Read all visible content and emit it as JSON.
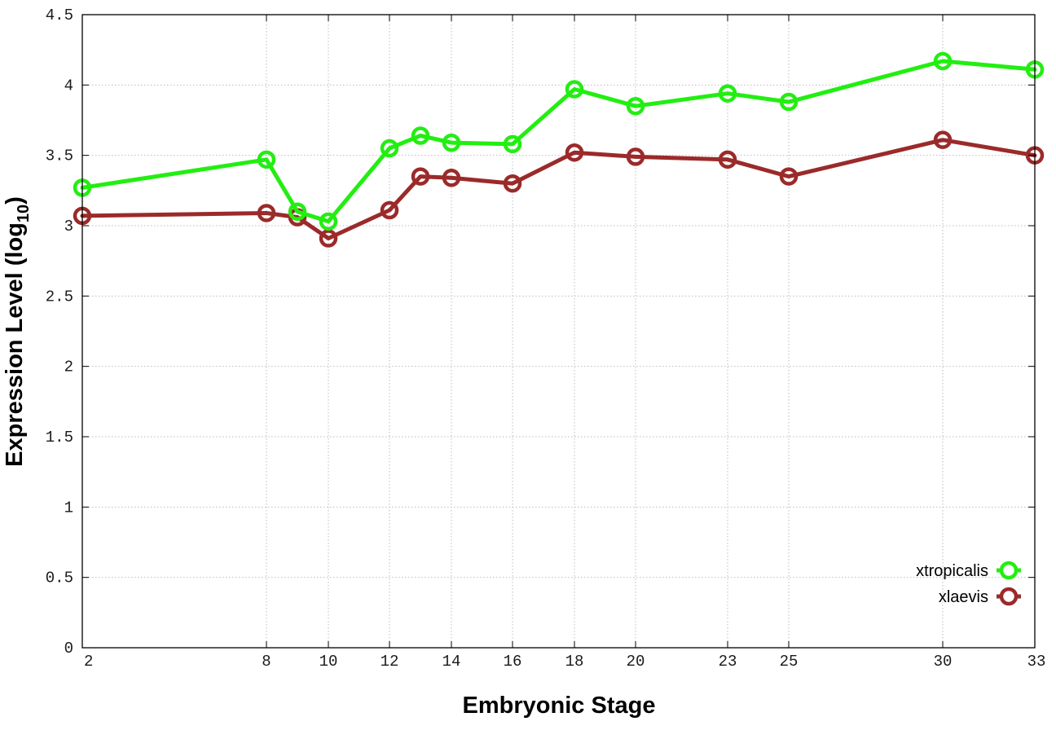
{
  "chart_data": {
    "type": "line",
    "title": "",
    "xlabel": "Embryonic Stage",
    "ylabel_main": "Expression Level (log",
    "ylabel_sub": "10",
    "ylabel_close": ")",
    "x_scale": "stage-index",
    "xlim": [
      2,
      33
    ],
    "ylim": [
      0,
      4.5
    ],
    "x_ticks": [
      2,
      8,
      10,
      12,
      14,
      16,
      18,
      20,
      23,
      25,
      30,
      33
    ],
    "x_tick_labels": [
      "2",
      "8",
      "10",
      "12",
      "14",
      "16",
      "18",
      "20",
      "23",
      "25",
      "30",
      "33"
    ],
    "y_ticks": [
      0,
      0.5,
      1,
      1.5,
      2,
      2.5,
      3,
      3.5,
      4,
      4.5
    ],
    "y_tick_labels": [
      "0",
      "0.5",
      "1",
      "1.5",
      "2",
      "2.5",
      "3",
      "3.5",
      "4",
      "4.5"
    ],
    "grid": true,
    "legend_position": "bottom-right",
    "series": [
      {
        "name": "xtropicalis",
        "color": "#22ee11",
        "x": [
          2,
          8,
          9,
          10,
          12,
          13,
          14,
          16,
          18,
          20,
          23,
          25,
          30,
          33
        ],
        "values": [
          3.27,
          3.47,
          3.1,
          3.03,
          3.55,
          3.64,
          3.59,
          3.58,
          3.97,
          3.85,
          3.94,
          3.88,
          4.17,
          4.11
        ]
      },
      {
        "name": "xlaevis",
        "color": "#9b2a2a",
        "x": [
          2,
          8,
          9,
          10,
          12,
          13,
          14,
          16,
          18,
          20,
          23,
          25,
          30,
          33
        ],
        "values": [
          3.07,
          3.09,
          3.06,
          2.91,
          3.11,
          3.35,
          3.34,
          3.3,
          3.52,
          3.49,
          3.47,
          3.35,
          3.61,
          3.5
        ]
      }
    ]
  }
}
